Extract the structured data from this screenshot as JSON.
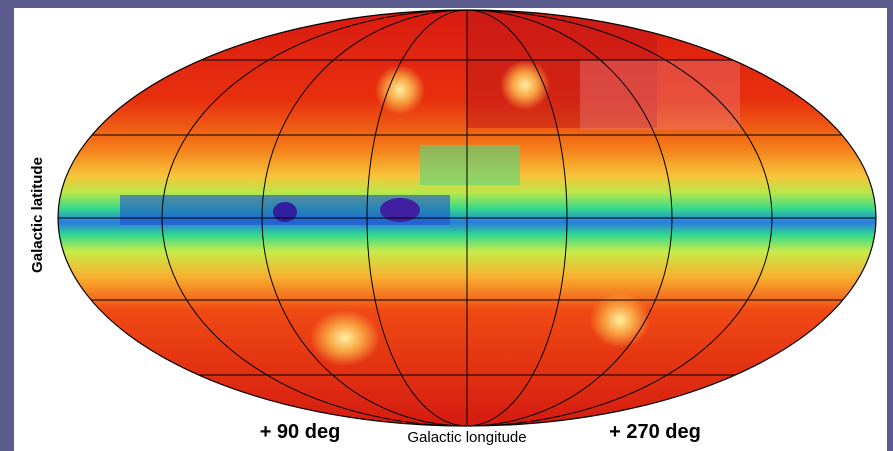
{
  "map": {
    "y_axis_label": "Galactic latitude",
    "x_axis_label": "Galactic longitude",
    "left_longitude_label": "+ 90 deg",
    "right_longitude_label": "+ 270 deg"
  }
}
